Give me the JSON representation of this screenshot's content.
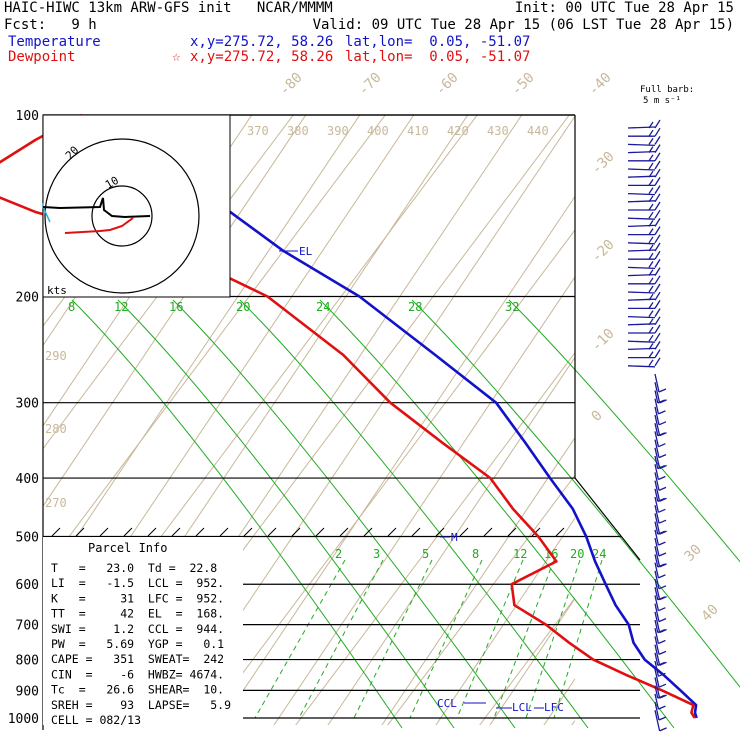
{
  "header": {
    "title": "HAIC-HIWC 13km ARW-GFS init   NCAR/MMMM",
    "init": "Init: 00 UTC Tue 28 Apr 15",
    "fcst": "Fcst:   9 h",
    "valid": "Valid: 09 UTC Tue 28 Apr 15 (06 LST Tue 28 Apr 15)",
    "temp_label": "Temperature",
    "temp_xy": "x,y=275.72, 58.26",
    "temp_latlon": "lat,lon=  0.05, -51.07",
    "dew_label": "Dewpoint",
    "dew_xy": "x,y=275.72, 58.26",
    "dew_latlon": "lat,lon=  0.05, -51.07",
    "dew_star": "☆"
  },
  "colors": {
    "temperature": "#1212c8",
    "dewpoint": "#e01010",
    "isotherm": "#c8b89a",
    "mixing": "#22aa22",
    "wind": "#1a1a9a"
  },
  "parcel_info": {
    "title": "Parcel Info",
    "rows": [
      "T   =   23.0  Td =  22.8",
      "LI  =   -1.5  LCL =  952.",
      "K   =     31  LFC =  952.",
      "TT  =     42  EL  =  168.",
      "SWI =    1.2  CCL =  944.",
      "PW  =   5.69  YGP =   0.1",
      "CAPE =   351  SWEAT=  242",
      "CIN  =    -6  HWBZ= 4674.",
      "Tc  =   26.6  SHEAR=  10.",
      "SREH =    93  LAPSE=   5.9",
      "CELL = 082/13"
    ]
  },
  "barb_legend": {
    "line1": "Full barb:",
    "line2": "5 m s⁻¹"
  },
  "hodograph": {
    "units": "kts",
    "ring_labels": [
      "20",
      "10"
    ]
  },
  "annotations": {
    "el": "EL",
    "m": "M",
    "ccl": "CCL",
    "lcl": "LCL",
    "lfc": "LFC"
  },
  "chart_data": {
    "type": "line",
    "subtype": "skew-T log-P sounding",
    "y_axis_pressure_ticks": [
      "100",
      "200",
      "300",
      "400",
      "500",
      "600",
      "700",
      "800",
      "900",
      "1000"
    ],
    "pressure_levels": [
      100,
      200,
      300,
      400,
      500,
      600,
      700,
      800,
      900,
      1000
    ],
    "y_scale": "log",
    "isotherm_labels_top": [
      "-80",
      "-70",
      "-60",
      "-50",
      "-40"
    ],
    "isotherm_labels_right": [
      "-30",
      "-20",
      "-10",
      "0",
      "30",
      "40"
    ],
    "theta_labels": [
      "370",
      "380",
      "390",
      "400",
      "410",
      "420",
      "430",
      "440"
    ],
    "theta_labels_left": [
      "290",
      "280",
      "270"
    ],
    "mixing_ratio_labels_top": [
      "8",
      "12",
      "16",
      "20",
      "24",
      "28",
      "32"
    ],
    "mixing_ratio_labels_low": [
      "2",
      "3",
      "5",
      "8",
      "12",
      "16",
      "20",
      "24"
    ],
    "series": [
      {
        "name": "Temperature",
        "points": [
          {
            "p": 1000,
            "t": 23.0
          },
          {
            "p": 980,
            "t": 22.4
          },
          {
            "p": 952,
            "t": 21.9
          },
          {
            "p": 900,
            "t": 19.0
          },
          {
            "p": 850,
            "t": 16.0
          },
          {
            "p": 800,
            "t": 12.6
          },
          {
            "p": 750,
            "t": 10.0
          },
          {
            "p": 700,
            "t": 8.0
          },
          {
            "p": 650,
            "t": 5.0
          },
          {
            "p": 600,
            "t": 2.2
          },
          {
            "p": 550,
            "t": -0.8
          },
          {
            "p": 500,
            "t": -3.8
          },
          {
            "p": 450,
            "t": -7.5
          },
          {
            "p": 400,
            "t": -12.5
          },
          {
            "p": 350,
            "t": -18.0
          },
          {
            "p": 300,
            "t": -24.5
          },
          {
            "p": 250,
            "t": -35.0
          },
          {
            "p": 200,
            "t": -48.0
          },
          {
            "p": 168,
            "t": -60.0
          },
          {
            "p": 140,
            "t": -71.0
          },
          {
            "p": 110,
            "t": -82.0
          },
          {
            "p": 100,
            "t": -84.0
          }
        ]
      },
      {
        "name": "Dewpoint",
        "points": [
          {
            "p": 1000,
            "t": 22.8
          },
          {
            "p": 980,
            "t": 22.0
          },
          {
            "p": 952,
            "t": 21.6
          },
          {
            "p": 900,
            "t": 17.0
          },
          {
            "p": 850,
            "t": 12.0
          },
          {
            "p": 800,
            "t": 7.0
          },
          {
            "p": 750,
            "t": 3.0
          },
          {
            "p": 700,
            "t": -1.0
          },
          {
            "p": 650,
            "t": -6.0
          },
          {
            "p": 600,
            "t": -8.0
          },
          {
            "p": 550,
            "t": -5.0
          },
          {
            "p": 500,
            "t": -9.0
          },
          {
            "p": 450,
            "t": -14.0
          },
          {
            "p": 400,
            "t": -19.0
          },
          {
            "p": 350,
            "t": -27.0
          },
          {
            "p": 300,
            "t": -36.0
          },
          {
            "p": 250,
            "t": -45.0
          },
          {
            "p": 200,
            "t": -58.0
          },
          {
            "p": 168,
            "t": -72.0
          },
          {
            "p": 145,
            "t": -90.0
          },
          {
            "p": 130,
            "t": -100.0
          },
          {
            "p": 110,
            "t": -96.0
          },
          {
            "p": 100,
            "t": -93.0
          }
        ]
      }
    ]
  }
}
